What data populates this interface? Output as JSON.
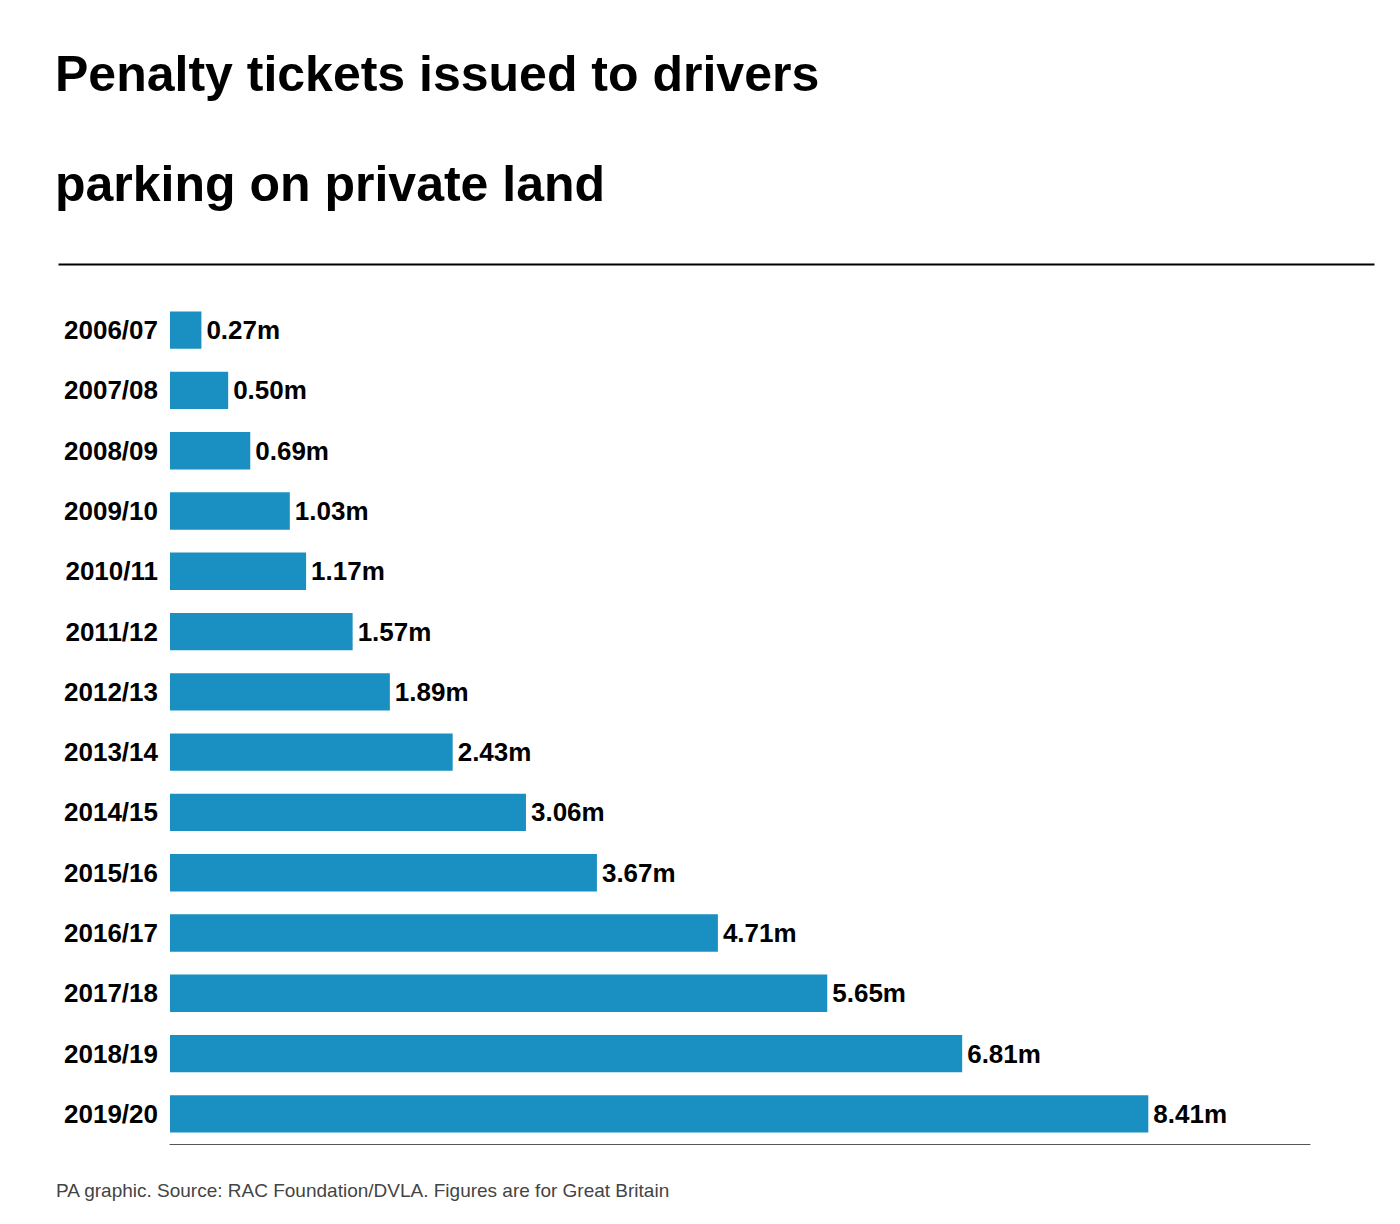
{
  "chart_data": {
    "type": "bar",
    "title": "Penalty tickets issued to drivers\nparking on private land",
    "annotations": [
      "PA graphic. Source: RAC Foundation/DVLA. Figures are for Great Britain"
    ],
    "orientation": "horizontal",
    "categories": [
      "2006/07",
      "2007/08",
      "2008/09",
      "2009/10",
      "2010/11",
      "2011/12",
      "2012/13",
      "2013/14",
      "2014/15",
      "2015/16",
      "2016/17",
      "2017/18",
      "2018/19",
      "2019/20"
    ],
    "values": [
      0.27,
      0.5,
      0.69,
      1.03,
      1.17,
      1.57,
      1.89,
      2.43,
      3.06,
      3.67,
      4.71,
      5.65,
      6.81,
      8.41
    ],
    "value_labels": [
      "0.27m",
      "0.50m",
      "0.69m",
      "1.03m",
      "1.17m",
      "1.57m",
      "1.89m",
      "2.43m",
      "3.06m",
      "3.67m",
      "4.71m",
      "5.65m",
      "6.81m",
      "8.41m"
    ],
    "data_labels": true,
    "color": "#1a8fc1",
    "xlim": [
      0,
      9.8
    ],
    "tick_labels": "y",
    "grid": false
  }
}
